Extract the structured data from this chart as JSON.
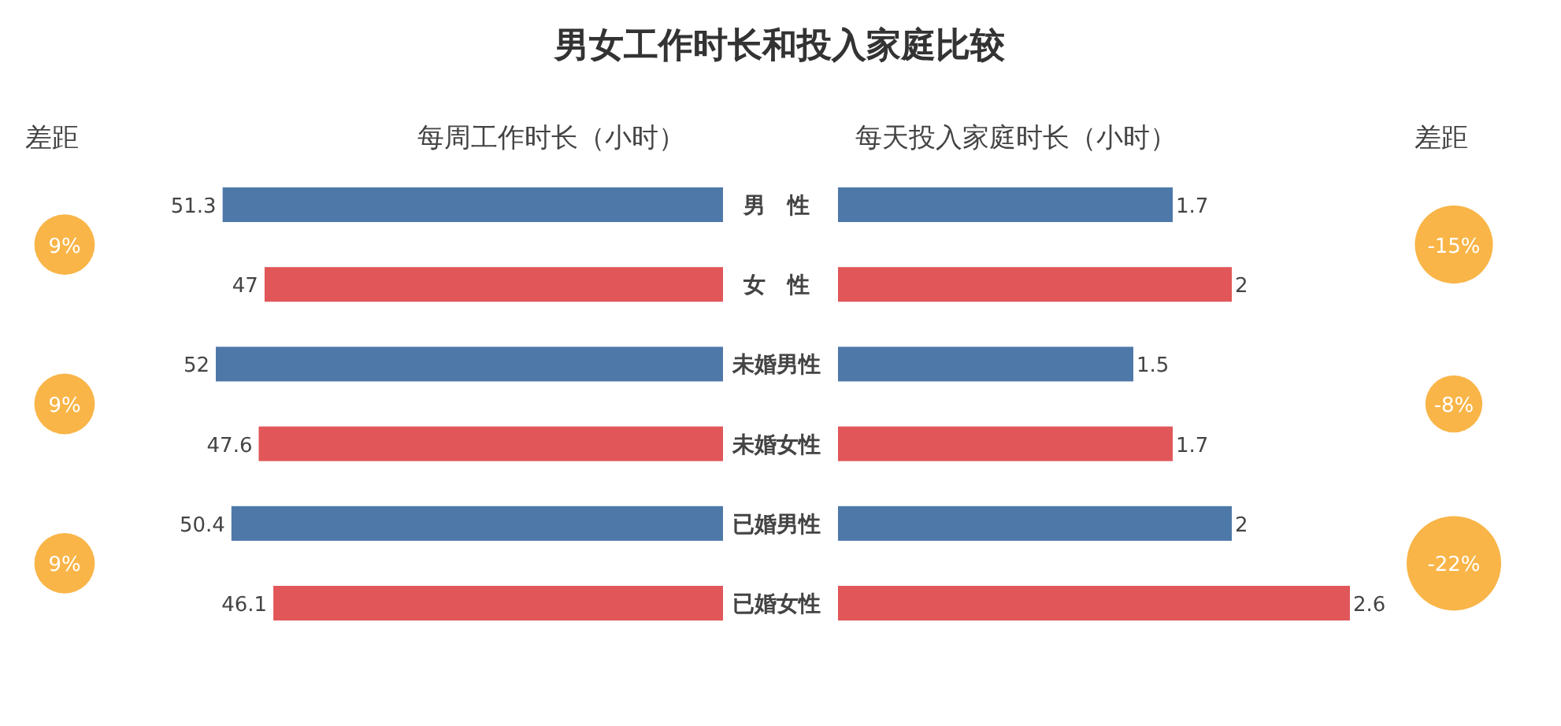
{
  "chart_data": [
    {
      "type": "other",
      "title": "差距",
      "values": [
        9,
        9,
        9
      ],
      "value_labels": [
        "9%",
        "9%",
        "9%"
      ],
      "color": "#f9b548"
    },
    {
      "type": "bar",
      "orientation": "horizontal",
      "title": "男女工作时长和投入家庭比较",
      "xlabel": "每周工作时长（小时）",
      "categories": [
        "男　性",
        "女　性",
        "未婚男性",
        "未婚女性",
        "已婚男性",
        "已婚女性"
      ],
      "values": [
        51.3,
        47,
        52,
        47.6,
        50.4,
        46.1
      ],
      "colors": [
        "#4e78a8",
        "#e15759",
        "#4e78a8",
        "#e15759",
        "#4e78a8",
        "#e15759"
      ],
      "data_labels": true
    },
    {
      "type": "bar",
      "orientation": "horizontal",
      "xlabel": "每天投入家庭时长（小时）",
      "categories": [
        null,
        null,
        null,
        null,
        null,
        null
      ],
      "values": [
        1.7,
        2,
        1.5,
        1.7,
        2,
        2.6
      ],
      "colors": [
        "#4e78a8",
        "#e15759",
        "#4e78a8",
        "#e15759",
        "#4e78a8",
        "#e15759"
      ],
      "data_labels": true
    },
    {
      "type": "other",
      "title": "差距",
      "values": [
        -15,
        -8,
        -22
      ],
      "value_labels": [
        "-15%",
        "-8%",
        "-22%"
      ],
      "color": "#f9b548"
    }
  ]
}
